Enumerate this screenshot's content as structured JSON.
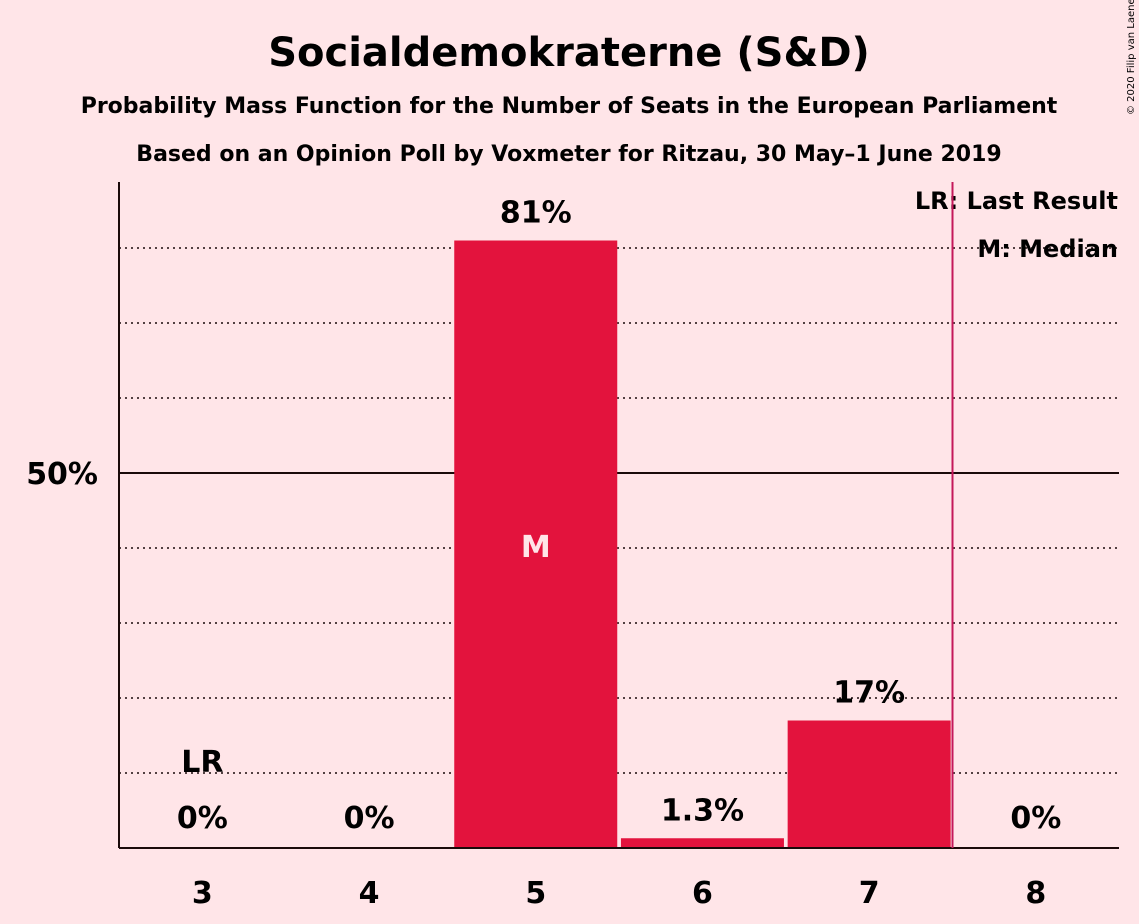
{
  "title": "Socialdemokraterne (S&D)",
  "subtitle_1": "Probability Mass Function for the Number of Seats in the European Parliament",
  "subtitle_2": "Based on an Opinion Poll by Voxmeter for Ritzau, 30 May–1 June 2019",
  "copyright": "© 2020 Filip van Laenen",
  "legend": {
    "lr": "LR: Last Result",
    "median": "M: Median"
  },
  "colors": {
    "background": "#FFE5E8",
    "bar": "#E3133D",
    "axis": "#1a0a0a",
    "last_result_line": "#C4185A"
  },
  "chart_data": {
    "type": "bar",
    "categories": [
      "3",
      "4",
      "5",
      "6",
      "7",
      "8"
    ],
    "values": [
      0,
      0,
      81,
      1.3,
      17,
      0
    ],
    "data_labels": [
      "0%",
      "0%",
      "81%",
      "1.3%",
      "17%",
      "0%"
    ],
    "ytick_label": "50%",
    "ytick_value": 50,
    "ylim": [
      0,
      90
    ],
    "gridlines": [
      10,
      20,
      30,
      40,
      60,
      70,
      80
    ],
    "last_result_category": "3",
    "last_result_label": "LR",
    "last_result_line_between": [
      "7",
      "8"
    ],
    "median_category": "5",
    "median_label": "M"
  }
}
